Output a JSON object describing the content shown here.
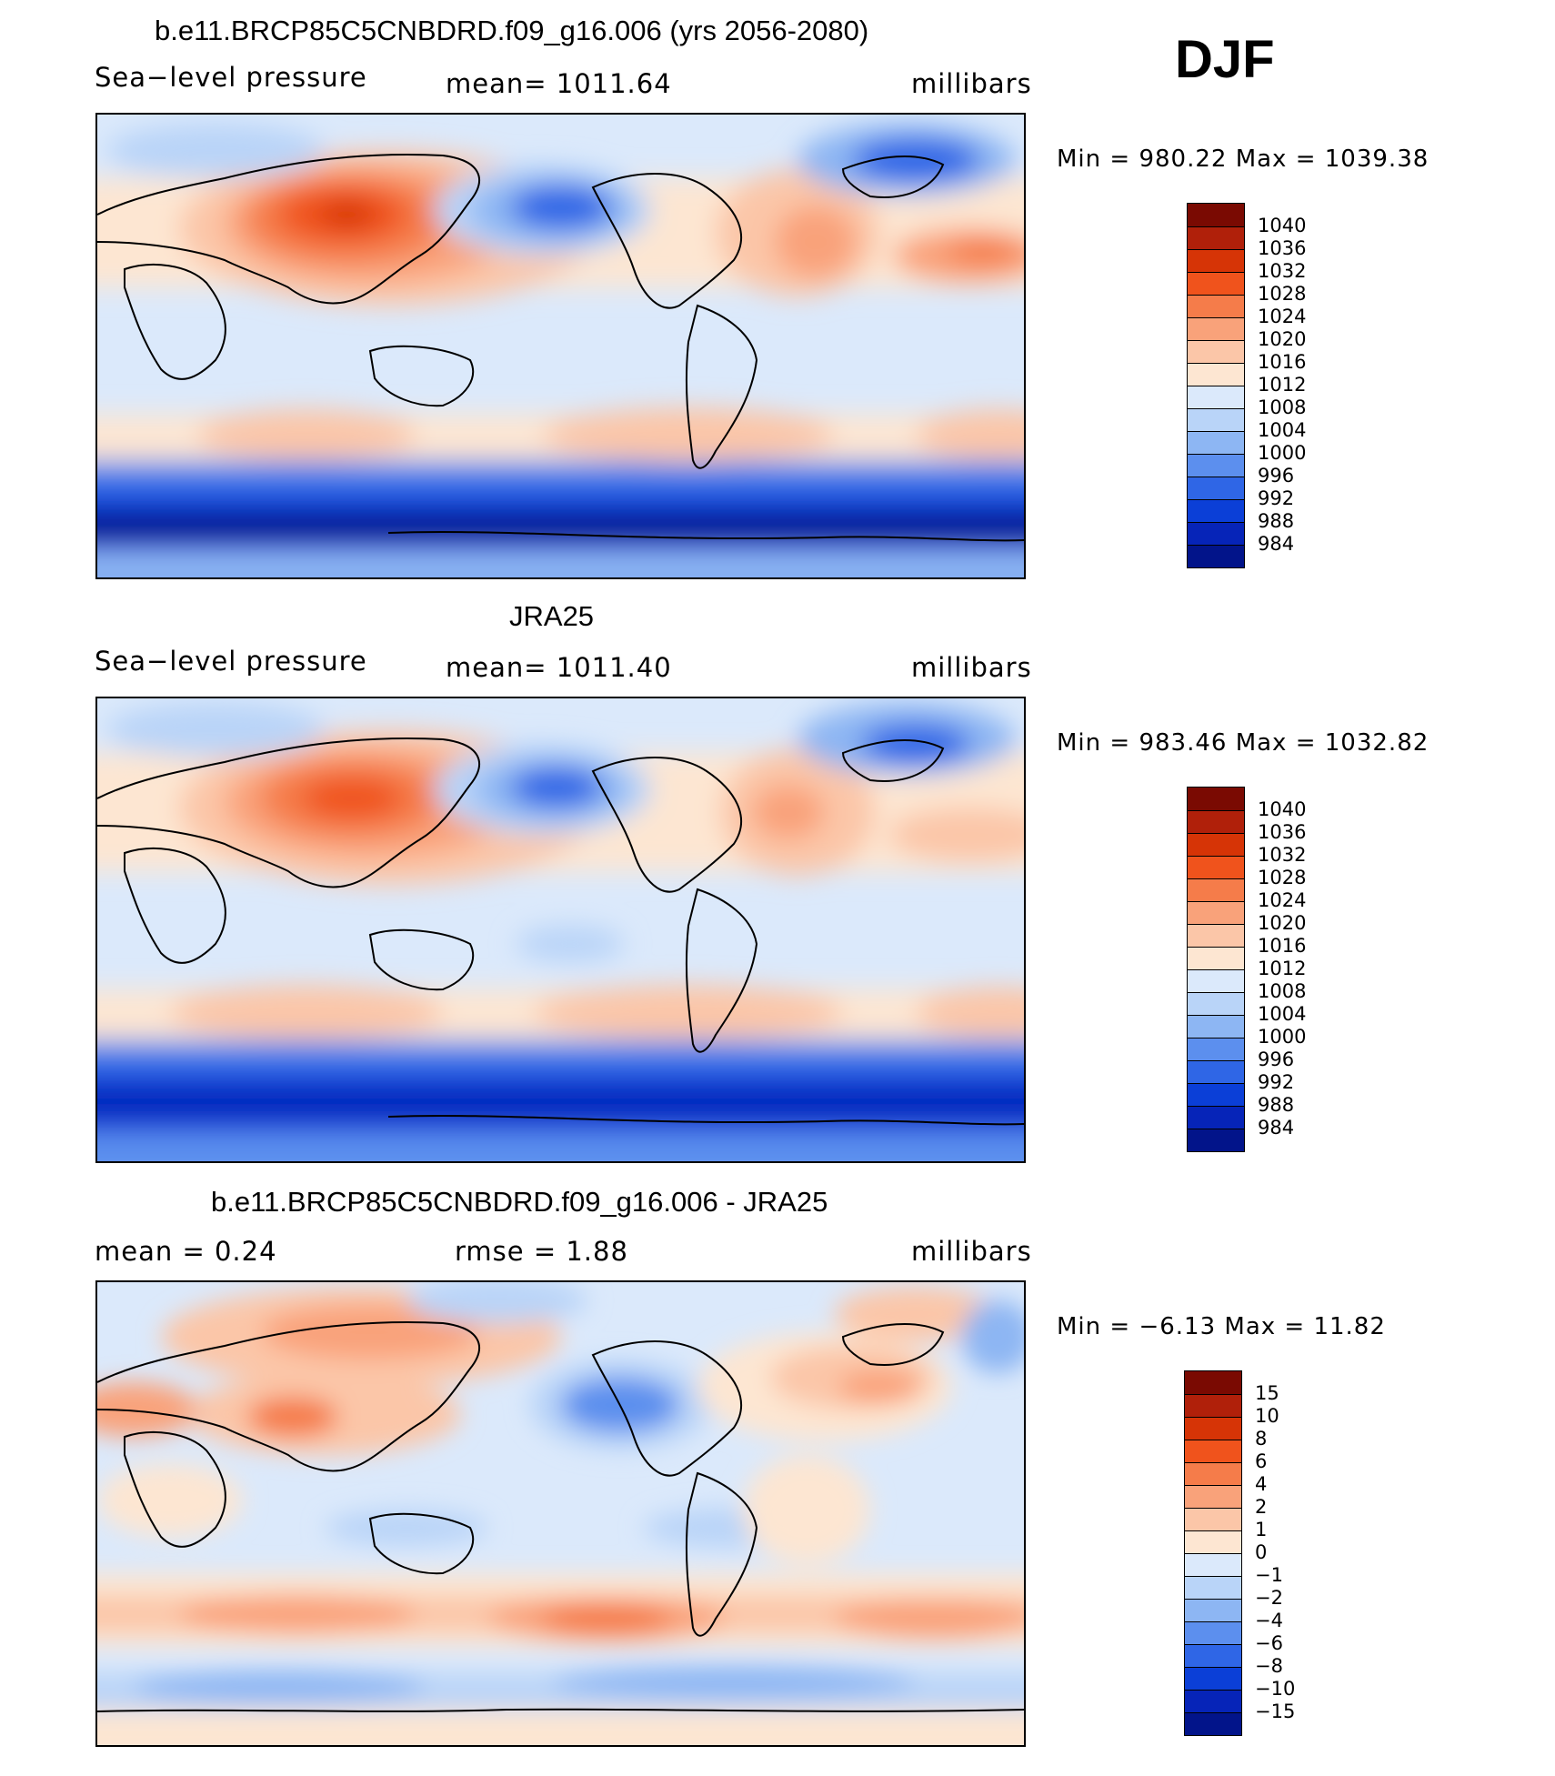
{
  "season": "DJF",
  "units": "millibars",
  "panels": [
    {
      "title": "b.e11.BRCP85C5CNBDRD.f09_g16.006 (yrs 2056-2080)",
      "variable": "Sea−level pressure",
      "stat": "mean=  1011.64",
      "units": "millibars",
      "minmax": "Min  =  980.22  Max  =  1039.38",
      "levels": [
        "1040",
        "1036",
        "1032",
        "1028",
        "1024",
        "1020",
        "1016",
        "1012",
        "1008",
        "1004",
        "1000",
        "996",
        "992",
        "988",
        "984"
      ],
      "colors": [
        "#7a0a02",
        "#b0200a",
        "#d63406",
        "#f0531c",
        "#f57c4a",
        "#f9a27a",
        "#fbc6a8",
        "#fde6d2",
        "#dbe9fb",
        "#b9d4f8",
        "#8db6f3",
        "#5c8fee",
        "#2f66e6",
        "#0b3fd7",
        "#0624b8",
        "#02148a"
      ]
    },
    {
      "title": "JRA25",
      "variable": "Sea−level pressure",
      "stat": "mean=  1011.40",
      "units": "millibars",
      "minmax": "Min  =  983.46  Max  =  1032.82",
      "levels": [
        "1040",
        "1036",
        "1032",
        "1028",
        "1024",
        "1020",
        "1016",
        "1012",
        "1008",
        "1004",
        "1000",
        "996",
        "992",
        "988",
        "984"
      ],
      "colors": [
        "#7a0a02",
        "#b0200a",
        "#d63406",
        "#f0531c",
        "#f57c4a",
        "#f9a27a",
        "#fbc6a8",
        "#fde6d2",
        "#dbe9fb",
        "#b9d4f8",
        "#8db6f3",
        "#5c8fee",
        "#2f66e6",
        "#0b3fd7",
        "#0624b8",
        "#02148a"
      ]
    },
    {
      "title": "b.e11.BRCP85C5CNBDRD.f09_g16.006 - JRA25",
      "stat_left": "mean  =     0.24",
      "stat": "rmse  =     1.88",
      "units": "millibars",
      "minmax": "Min  =    −6.13  Max  =    11.82",
      "levels": [
        "15",
        "10",
        "8",
        "6",
        "4",
        "2",
        "1",
        "0",
        "−1",
        "−2",
        "−4",
        "−6",
        "−8",
        "−10",
        "−15"
      ],
      "colors": [
        "#7a0a02",
        "#b0200a",
        "#d63406",
        "#f0531c",
        "#f57c4a",
        "#f9a27a",
        "#fbc6a8",
        "#fde6d2",
        "#dbe9fb",
        "#b9d4f8",
        "#8db6f3",
        "#5c8fee",
        "#2f66e6",
        "#0b3fd7",
        "#0624b8",
        "#02148a"
      ]
    }
  ]
}
